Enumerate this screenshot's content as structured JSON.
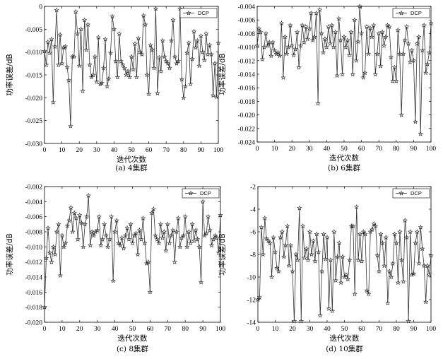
{
  "chart_data": [
    {
      "type": "line",
      "panel_caption": "(a) 4集群",
      "xlabel": "迭代次数",
      "ylabel": "功率误差/dB",
      "xlim": [
        0,
        100
      ],
      "ylim": [
        -0.03,
        0
      ],
      "xticks": [
        0,
        10,
        20,
        30,
        40,
        50,
        60,
        70,
        80,
        90,
        100
      ],
      "xtick_labels": [
        "0",
        "10",
        "20",
        "30",
        "40",
        "50",
        "60",
        "70",
        "80",
        "90",
        "100"
      ],
      "yticks": [
        0,
        -0.005,
        -0.01,
        -0.015,
        -0.02,
        -0.025,
        -0.03
      ],
      "ytick_labels": [
        "0",
        "-0.005",
        "-0.010",
        "-0.015",
        "-0.020",
        "-0.025",
        "-0.030"
      ],
      "series": [
        {
          "name": "DCP",
          "marker": "star",
          "values": [
            -0.0098,
            -0.0128,
            -0.0078,
            -0.0102,
            -0.0072,
            -0.021,
            -0.0088,
            -0.0008,
            -0.0128,
            -0.0062,
            -0.0125,
            -0.009,
            -0.0088,
            -0.0133,
            -0.0162,
            -0.0262,
            -0.011,
            -0.011,
            -0.0012,
            -0.006,
            -0.013,
            -0.005,
            -0.0185,
            -0.003,
            -0.0095,
            -0.004,
            -0.0128,
            -0.0155,
            -0.015,
            -0.011,
            -0.0165,
            -0.0068,
            -0.017,
            -0.0168,
            -0.0135,
            -0.0072,
            -0.0175,
            -0.0158,
            -0.0102,
            -0.0022,
            -0.005,
            -0.012,
            -0.0155,
            -0.006,
            -0.012,
            -0.0128,
            -0.0135,
            -0.015,
            -0.0142,
            -0.0155,
            -0.011,
            -0.0138,
            -0.0082,
            -0.0155,
            -0.007,
            -0.01,
            -0.0105,
            -0.002,
            -0.004,
            -0.015,
            -0.0192,
            -0.0085,
            -0.0095,
            -0.0135,
            -0.0005,
            -0.019,
            -0.0112,
            -0.0142,
            -0.0075,
            -0.011,
            -0.012,
            -0.0125,
            -0.0135,
            -0.0075,
            -0.003,
            -0.011,
            -0.0125,
            -0.012,
            -0.0005,
            -0.016,
            -0.02,
            -0.0175,
            -0.0102,
            -0.008,
            -0.017,
            -0.0115,
            -0.0055,
            -0.009,
            -0.0075,
            -0.013,
            -0.0065,
            -0.01,
            -0.0118,
            -0.006,
            -0.0105,
            -0.0085,
            -0.0105,
            -0.0195,
            -0.0125,
            -0.0198,
            -0.008
          ]
        }
      ]
    },
    {
      "type": "line",
      "panel_caption": "(b) 6集群",
      "xlabel": "迭代次数",
      "ylabel": "功率误差/dB",
      "xlim": [
        0,
        100
      ],
      "ylim": [
        -0.024,
        -0.004
      ],
      "xticks": [
        0,
        10,
        20,
        30,
        40,
        50,
        60,
        70,
        80,
        90,
        100
      ],
      "xtick_labels": [
        "0",
        "10",
        "20",
        "30",
        "40",
        "50",
        "60",
        "70",
        "80",
        "90",
        "100"
      ],
      "yticks": [
        -0.004,
        -0.006,
        -0.008,
        -0.01,
        -0.012,
        -0.014,
        -0.016,
        -0.018,
        -0.02,
        -0.022,
        -0.024
      ],
      "ytick_labels": [
        "-0.004",
        "-0.006",
        "-0.008",
        "-0.010",
        "-0.012",
        "-0.014",
        "-0.016",
        "-0.018",
        "-0.020",
        "-0.022",
        "-0.024"
      ],
      "series": [
        {
          "name": "DCP",
          "marker": "star",
          "values": [
            -0.0098,
            -0.0073,
            -0.0078,
            -0.0118,
            -0.01,
            -0.008,
            -0.0098,
            -0.0093,
            -0.0113,
            -0.0093,
            -0.0105,
            -0.011,
            -0.0108,
            -0.0113,
            -0.0065,
            -0.0145,
            -0.0085,
            -0.011,
            -0.01,
            -0.0068,
            -0.0098,
            -0.0112,
            -0.0103,
            -0.0078,
            -0.013,
            -0.0098,
            -0.0068,
            -0.0093,
            -0.007,
            -0.0088,
            -0.0073,
            -0.005,
            -0.009,
            -0.0085,
            -0.005,
            -0.0183,
            -0.0045,
            -0.008,
            -0.0108,
            -0.0088,
            -0.01,
            -0.007,
            -0.0095,
            -0.0068,
            -0.01,
            -0.0078,
            -0.0142,
            -0.0058,
            -0.009,
            -0.014,
            -0.0085,
            -0.01,
            -0.009,
            -0.0112,
            -0.0078,
            -0.014,
            -0.006,
            -0.012,
            -0.0092,
            -0.004,
            -0.008,
            -0.0145,
            -0.0138,
            -0.007,
            -0.011,
            -0.0072,
            -0.0085,
            -0.0068,
            -0.014,
            -0.011,
            -0.008,
            -0.0128,
            -0.0078,
            -0.0098,
            -0.0085,
            -0.0068,
            -0.007,
            -0.0115,
            -0.015,
            -0.013,
            -0.015,
            -0.0075,
            -0.011,
            -0.02,
            -0.011,
            -0.009,
            -0.007,
            -0.0095,
            -0.0122,
            -0.0105,
            -0.012,
            -0.021,
            -0.0095,
            -0.0085,
            -0.0228,
            -0.0105,
            -0.0068,
            -0.0138,
            -0.0125,
            -0.0108,
            -0.0065
          ]
        }
      ]
    },
    {
      "type": "line",
      "panel_caption": "(c) 8集群",
      "xlabel": "迭代次数",
      "ylabel": "功率误差/dB",
      "xlim": [
        0,
        100
      ],
      "ylim": [
        -0.02,
        -0.002
      ],
      "xticks": [
        0,
        10,
        20,
        30,
        40,
        50,
        60,
        70,
        80,
        90,
        100
      ],
      "xtick_labels": [
        "0",
        "10",
        "20",
        "30",
        "40",
        "50",
        "60",
        "70",
        "80",
        "90",
        "100"
      ],
      "yticks": [
        -0.002,
        -0.004,
        -0.006,
        -0.008,
        -0.01,
        -0.012,
        -0.014,
        -0.016,
        -0.018,
        -0.02
      ],
      "ytick_labels": [
        "-0.002",
        "-0.004",
        "-0.006",
        "-0.008",
        "-0.010",
        "-0.012",
        "-0.014",
        "-0.016",
        "-0.018",
        "-0.020"
      ],
      "series": [
        {
          "name": "DCP",
          "marker": "star",
          "values": [
            -0.018,
            -0.0115,
            -0.0075,
            -0.0108,
            -0.012,
            -0.01,
            -0.011,
            -0.008,
            -0.007,
            -0.0138,
            -0.0085,
            -0.01,
            -0.0095,
            -0.0072,
            -0.0065,
            -0.0048,
            -0.008,
            -0.0055,
            -0.0062,
            -0.009,
            -0.0058,
            -0.0068,
            -0.01,
            -0.007,
            -0.006,
            -0.0032,
            -0.0098,
            -0.008,
            -0.0085,
            -0.008,
            -0.0078,
            -0.006,
            -0.0098,
            -0.009,
            -0.007,
            -0.0085,
            -0.01,
            -0.009,
            -0.006,
            -0.0145,
            -0.008,
            -0.0065,
            -0.0095,
            -0.0098,
            -0.0088,
            -0.0102,
            -0.0085,
            -0.0075,
            -0.009,
            -0.007,
            -0.0095,
            -0.0085,
            -0.0082,
            -0.011,
            -0.0078,
            -0.009,
            -0.0062,
            -0.0095,
            -0.0122,
            -0.012,
            -0.016,
            -0.0055,
            -0.005,
            -0.0085,
            -0.009,
            -0.0095,
            -0.007,
            -0.0088,
            -0.008,
            -0.0105,
            -0.007,
            -0.0095,
            -0.0085,
            -0.0078,
            -0.012,
            -0.008,
            -0.0062,
            -0.01,
            -0.0088,
            -0.0085,
            -0.006,
            -0.01,
            -0.008,
            -0.0095,
            -0.007,
            -0.0092,
            -0.0078,
            -0.009,
            -0.01,
            -0.0147,
            -0.004,
            -0.0085,
            -0.0082,
            -0.006,
            -0.0078,
            -0.0098,
            -0.009,
            -0.0085,
            -0.0088,
            -0.0108,
            -0.0058
          ]
        }
      ]
    },
    {
      "type": "line",
      "panel_caption": "(d) 10集群",
      "xlabel": "迭代次数",
      "ylabel": "功率误差/dB",
      "xlim": [
        0,
        100
      ],
      "ylim": [
        -14,
        -2
      ],
      "xticks": [
        0,
        10,
        20,
        30,
        40,
        50,
        60,
        70,
        80,
        90,
        100
      ],
      "xtick_labels": [
        "0",
        "10",
        "20",
        "30",
        "40",
        "50",
        "60",
        "70",
        "80",
        "90",
        "100"
      ],
      "yticks": [
        -2,
        -4,
        -6,
        -8,
        -10,
        -12,
        -14
      ],
      "ytick_labels": [
        "-2",
        "-4",
        "-6",
        "-8",
        "-10",
        "-12",
        "-14"
      ],
      "series": [
        {
          "name": "DCP",
          "marker": "star",
          "values": [
            -12.0,
            -11.8,
            -5.6,
            -8.0,
            -4.8,
            -6.6,
            -6.8,
            -7.0,
            -10.0,
            -6.5,
            -7.8,
            -9.2,
            -9.5,
            -6.5,
            -6.0,
            -8.2,
            -7.2,
            -5.5,
            -9.0,
            -7.2,
            -9.5,
            -13.9,
            -8.0,
            -8.5,
            -3.9,
            -13.9,
            -5.5,
            -8.3,
            -7.5,
            -8.5,
            -6.0,
            -8.0,
            -6.8,
            -8.6,
            -6.2,
            -7.8,
            -13.4,
            -9.5,
            -6.2,
            -8.4,
            -6.5,
            -12.8,
            -8.5,
            -13.0,
            -6.0,
            -10.3,
            -8.2,
            -7.0,
            -10.5,
            -8.2,
            -10.0,
            -9.8,
            -10.2,
            -8.5,
            -5.5,
            -5.5,
            -11.5,
            -3.8,
            -8.5,
            -6.2,
            -8.6,
            -6.0,
            -6.2,
            -11.2,
            -11.5,
            -6.0,
            -5.8,
            -5.3,
            -5.5,
            -8.1,
            -9.5,
            -6.2,
            -7.0,
            -9.0,
            -6.5,
            -12.3,
            -9.5,
            -10.0,
            -8.8,
            -6.2,
            -7.0,
            -10.5,
            -6.0,
            -8.5,
            -10.4,
            -5.0,
            -6.5,
            -13.9,
            -6.0,
            -9.8,
            -9.7,
            -7.0,
            -6.0,
            -8.8,
            -5.6,
            -7.5,
            -9.0,
            -12.2,
            -9.0,
            -9.8,
            -8.1
          ]
        }
      ]
    }
  ]
}
